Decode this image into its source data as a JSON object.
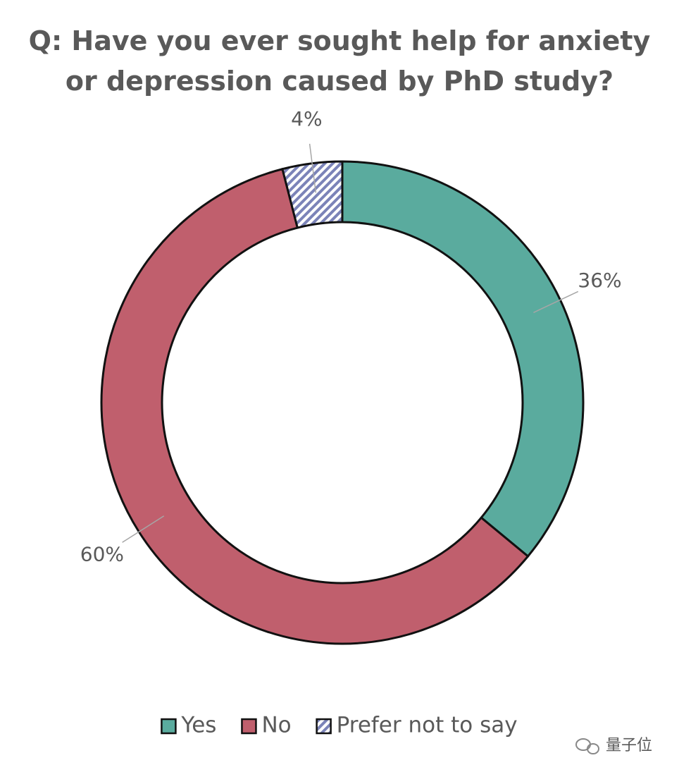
{
  "chart_data": {
    "type": "pie",
    "title": "Q: Have you ever sought help for anxiety or depression caused by PhD study?",
    "categories": [
      "Yes",
      "No",
      "Prefer not to say"
    ],
    "values": [
      36,
      60,
      4
    ],
    "value_labels": [
      "36%",
      "60%",
      "4%"
    ],
    "colors": [
      "#5aab9e",
      "#c05f6d",
      "#7b83b8"
    ],
    "hatched": [
      false,
      false,
      true
    ],
    "legend": "bottom",
    "watermark": "量子位"
  }
}
